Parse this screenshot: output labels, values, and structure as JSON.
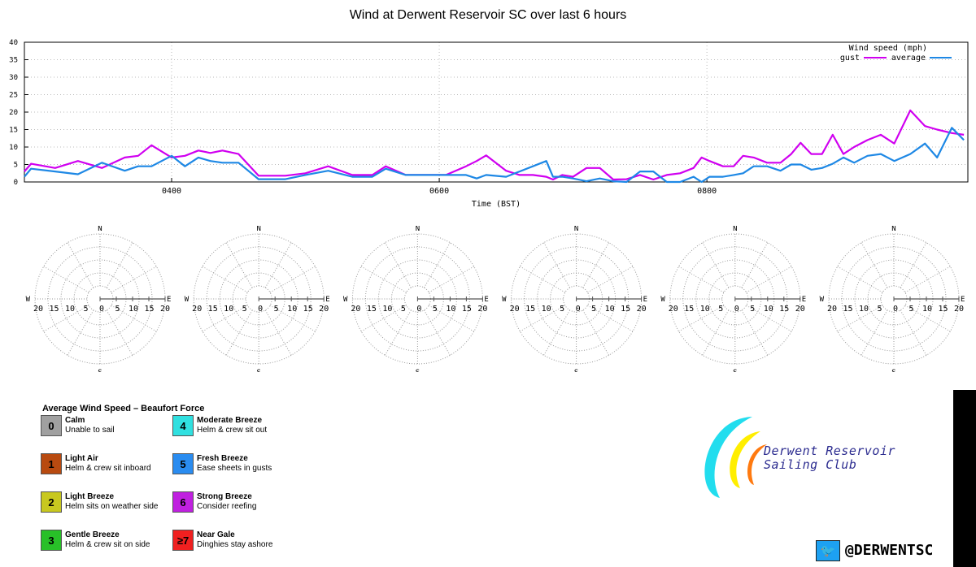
{
  "title": "Wind at Derwent Reservoir SC over last 6 hours",
  "chart_data": {
    "type": "line",
    "title": "Wind at Derwent Reservoir SC over last 6 hours",
    "xlabel": "Time (BST)",
    "ylabel": "",
    "xlim": [
      2.9,
      9.95
    ],
    "ylim": [
      0,
      40
    ],
    "xticks": [
      {
        "v": 4,
        "label": "0400"
      },
      {
        "v": 6,
        "label": "0600"
      },
      {
        "v": 8,
        "label": "0800"
      }
    ],
    "yticks": [
      0,
      5,
      10,
      15,
      20,
      25,
      30,
      35,
      40
    ],
    "legend": {
      "title": "Wind speed (mph)",
      "placement": "top-right"
    },
    "x": [
      2.9,
      2.95,
      3.13,
      3.3,
      3.48,
      3.65,
      3.75,
      3.85,
      4.0,
      4.1,
      4.2,
      4.29,
      4.38,
      4.5,
      4.65,
      4.85,
      5.0,
      5.17,
      5.35,
      5.5,
      5.6,
      5.75,
      5.9,
      6.05,
      6.2,
      6.28,
      6.35,
      6.5,
      6.6,
      6.7,
      6.8,
      6.85,
      6.92,
      7.0,
      7.1,
      7.2,
      7.3,
      7.4,
      7.5,
      7.6,
      7.7,
      7.8,
      7.9,
      7.96,
      8.02,
      8.12,
      8.2,
      8.27,
      8.35,
      8.45,
      8.55,
      8.63,
      8.7,
      8.78,
      8.86,
      8.94,
      9.02,
      9.1,
      9.2,
      9.3,
      9.4,
      9.52,
      9.63,
      9.72,
      9.83,
      9.92
    ],
    "series": [
      {
        "name": "gust",
        "color": "#d000f0",
        "values": [
          3,
          5.2,
          4,
          6,
          4,
          7,
          7.5,
          10.5,
          7,
          7.5,
          9,
          8.3,
          9,
          8,
          1.8,
          1.8,
          2.5,
          4.5,
          2,
          2,
          4.5,
          2,
          2,
          2,
          4.5,
          6,
          7.6,
          3.2,
          2,
          2,
          1.5,
          0.7,
          2,
          1.5,
          4,
          4,
          0.7,
          0.8,
          2,
          0.7,
          2,
          2.5,
          4,
          7,
          6,
          4.5,
          4.5,
          7.5,
          7,
          5.5,
          5.5,
          8,
          11.2,
          8,
          8,
          13.5,
          8,
          10,
          12,
          13.5,
          11,
          20.5,
          16,
          15,
          14,
          13.5
        ]
      },
      {
        "name": "average",
        "color": "#1e88e5",
        "values": [
          1.5,
          3.8,
          3,
          2.2,
          5.5,
          3.2,
          4.5,
          4.5,
          7.5,
          4.5,
          7,
          6,
          5.5,
          5.5,
          0.8,
          0.8,
          2,
          3.2,
          1.5,
          1.5,
          3.8,
          2,
          2,
          2,
          2,
          1,
          2,
          1.5,
          3,
          4.5,
          6,
          1.5,
          1.5,
          1,
          0.2,
          1,
          0.2,
          0,
          3,
          3,
          0,
          0,
          1.5,
          0,
          1.5,
          1.5,
          2,
          2.5,
          4.5,
          4.5,
          3.2,
          5,
          5,
          3.5,
          4,
          5.2,
          7,
          5.5,
          7.5,
          8,
          6,
          8,
          11,
          7,
          15.5,
          12
        ]
      }
    ]
  },
  "roses": {
    "count": 6,
    "labels": {
      "n": "N",
      "s": "S",
      "e": "E",
      "w": "W"
    },
    "speed_ticks": [
      "20",
      "15",
      "10",
      "5",
      "0",
      "5",
      "10",
      "15",
      "20"
    ]
  },
  "legend": {
    "title": "Average Wind Speed – Beaufort Force",
    "items": [
      {
        "force": "0",
        "name": "Calm",
        "desc": "Unable to sail",
        "color": "#a0a0a0"
      },
      {
        "force": "1",
        "name": "Light Air",
        "desc": "Helm & crew sit inboard",
        "color": "#b84a10"
      },
      {
        "force": "2",
        "name": "Light Breeze",
        "desc": "Helm sits on weather side",
        "color": "#c8c820"
      },
      {
        "force": "3",
        "name": "Gentle Breeze",
        "desc": "Helm & crew sit on side",
        "color": "#28c028"
      },
      {
        "force": "4",
        "name": "Moderate Breeze",
        "desc": "Helm & crew sit out",
        "color": "#30e0e0"
      },
      {
        "force": "5",
        "name": "Fresh Breeze",
        "desc": "Ease sheets in gusts",
        "color": "#2a8cf0"
      },
      {
        "force": "6",
        "name": "Strong Breeze",
        "desc": "Consider reefing",
        "color": "#c020e0"
      },
      {
        "force": "≥7",
        "name": "Near Gale",
        "desc": "Dinghies stay ashore",
        "color": "#f02020"
      }
    ]
  },
  "club": {
    "line1": "Derwent Reservoir",
    "line2": "Sailing Club"
  },
  "twitter": {
    "handle": "@DERWENTSC",
    "icon": "twitter-bird-icon",
    "color": "#1da1f2"
  }
}
